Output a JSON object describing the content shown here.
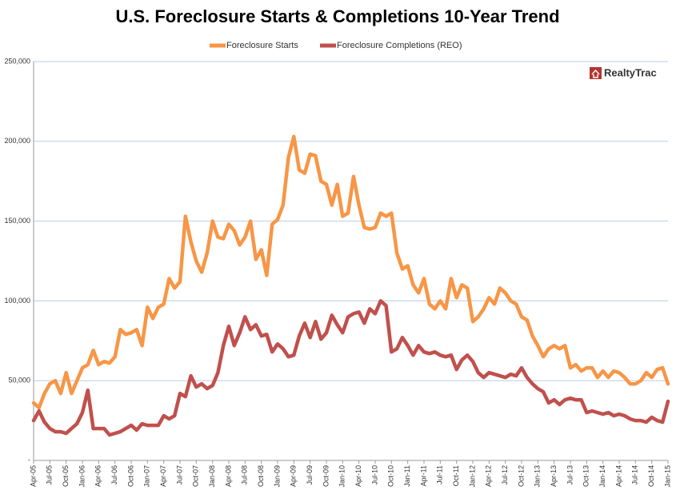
{
  "chart_data": {
    "type": "line",
    "title": "U.S. Foreclosure Starts & Completions 10-Year Trend",
    "logo": "RealtyTrac",
    "categories": [
      "Apr-05",
      null,
      null,
      "Jul-05",
      null,
      null,
      "Oct-05",
      null,
      null,
      "Jan-06",
      null,
      null,
      "Apr-06",
      null,
      null,
      "Jul-06",
      null,
      null,
      "Oct-06",
      null,
      null,
      "Jan-07",
      null,
      null,
      "Apr-07",
      null,
      null,
      "Jul-07",
      null,
      null,
      "Oct-07",
      null,
      null,
      "Jan-08",
      null,
      null,
      "Apr-08",
      null,
      null,
      "Jul-08",
      null,
      null,
      "Oct-08",
      null,
      null,
      "Jan-09",
      null,
      null,
      "Apr-09",
      null,
      null,
      "Jul-09",
      null,
      null,
      "Oct-09",
      null,
      null,
      "Jan-10",
      null,
      null,
      "Apr-10",
      null,
      null,
      "Jul-10",
      null,
      null,
      "Oct-10",
      null,
      null,
      "Jan-11",
      null,
      null,
      "Apr-11",
      null,
      null,
      "Jul-11",
      null,
      null,
      "Oct-11",
      null,
      null,
      "Jan-12",
      null,
      null,
      "Apr-12",
      null,
      null,
      "Jul-12",
      null,
      null,
      "Oct-12",
      null,
      null,
      "Jan-13",
      null,
      null,
      "Apr-13",
      null,
      null,
      "Jul-13",
      null,
      null,
      "Oct-13",
      null,
      null,
      "Jan-14",
      null,
      null,
      "Apr-14",
      null,
      null,
      "Jul-14",
      null,
      null,
      "Oct-14",
      null,
      null,
      "Jan-15"
    ],
    "series": [
      {
        "name": "Foreclosure Starts",
        "color": "#f79646",
        "values": [
          36000,
          33000,
          42000,
          48000,
          50000,
          42000,
          55000,
          42000,
          50000,
          58000,
          60000,
          69000,
          60000,
          62000,
          61000,
          65000,
          82000,
          79000,
          80000,
          82000,
          72000,
          96000,
          89000,
          96000,
          98000,
          114000,
          108000,
          112000,
          153000,
          137000,
          125000,
          118000,
          130000,
          150000,
          140000,
          139000,
          148000,
          144000,
          135000,
          140000,
          150000,
          126000,
          132000,
          116000,
          148000,
          151000,
          160000,
          190000,
          203000,
          182000,
          180000,
          192000,
          191000,
          175000,
          173000,
          160000,
          173000,
          153000,
          155000,
          178000,
          160000,
          146000,
          145000,
          146000,
          155000,
          153000,
          155000,
          130000,
          120000,
          122000,
          110000,
          105000,
          114000,
          98000,
          95000,
          100000,
          95000,
          114000,
          102000,
          110000,
          108000,
          87000,
          90000,
          95000,
          102000,
          98000,
          108000,
          105000,
          100000,
          98000,
          90000,
          88000,
          78000,
          72000,
          65000,
          70000,
          72000,
          70000,
          72000,
          58000,
          60000,
          56000,
          58000,
          58000,
          52000,
          56000,
          52000,
          56000,
          55000,
          52000,
          48000,
          48000,
          50000,
          55000,
          52000,
          57000,
          58000,
          48000
        ]
      },
      {
        "name": "Foreclosure Completions (REO)",
        "color": "#c0504d",
        "values": [
          25000,
          31000,
          24000,
          20000,
          18000,
          18000,
          17000,
          20000,
          23000,
          30000,
          44000,
          20000,
          20000,
          20000,
          16000,
          17000,
          18000,
          20000,
          22000,
          19000,
          23000,
          22000,
          22000,
          22000,
          28000,
          26000,
          28000,
          42000,
          40000,
          53000,
          46000,
          48000,
          45000,
          47000,
          55000,
          72000,
          84000,
          72000,
          80000,
          90000,
          82000,
          85000,
          78000,
          79000,
          68000,
          73000,
          70000,
          65000,
          66000,
          78000,
          86000,
          77000,
          87000,
          76000,
          80000,
          91000,
          85000,
          80000,
          90000,
          92000,
          93000,
          86000,
          95000,
          92000,
          100000,
          97000,
          68000,
          70000,
          77000,
          72000,
          66000,
          72000,
          68000,
          67000,
          68000,
          66000,
          65000,
          66000,
          57000,
          63000,
          66000,
          62000,
          55000,
          52000,
          55000,
          54000,
          53000,
          52000,
          54000,
          53000,
          58000,
          52000,
          48000,
          45000,
          43000,
          36000,
          38000,
          35000,
          38000,
          39000,
          38000,
          38000,
          30000,
          31000,
          30000,
          29000,
          30000,
          28000,
          29000,
          28000,
          26000,
          25000,
          25000,
          24000,
          27000,
          25000,
          24000,
          37000
        ]
      }
    ],
    "ylim": [
      0,
      250000
    ],
    "yticks": [
      {
        "value": 0,
        "label": "-"
      },
      {
        "value": 50000,
        "label": "50,000"
      },
      {
        "value": 100000,
        "label": "100,000"
      },
      {
        "value": 150000,
        "label": "150,000"
      },
      {
        "value": 200000,
        "label": "200,000"
      },
      {
        "value": 250000,
        "label": "250,000"
      }
    ],
    "grid": true,
    "legend": "top"
  }
}
